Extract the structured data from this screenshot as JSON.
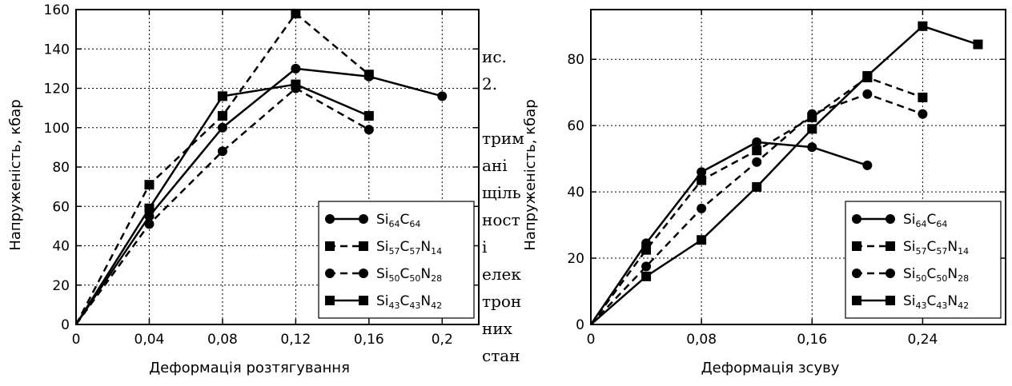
{
  "side_text": [
    "ис.",
    "2.",
    "",
    "трим",
    "ані",
    "щіль",
    "ност",
    "і",
    "елек",
    "трон",
    "них",
    "стан"
  ],
  "series_styles": [
    {
      "key": "si64c64",
      "marker": "circle",
      "dashed": false
    },
    {
      "key": "si57c57n14",
      "marker": "square",
      "dashed": true
    },
    {
      "key": "si50c50n28",
      "marker": "circle",
      "dashed": true
    },
    {
      "key": "si43c43n42",
      "marker": "square",
      "dashed": false
    }
  ],
  "chart_data": [
    {
      "type": "line",
      "xlabel": "Деформація розтягування",
      "ylabel": "Напруженість, кбар",
      "xlim": [
        0,
        0.22
      ],
      "ylim": [
        0,
        160
      ],
      "xticks": [
        0,
        0.04,
        0.08,
        0.12,
        0.16,
        0.2
      ],
      "xtick_labels": [
        "0",
        "0,04",
        "0,08",
        "0,12",
        "0,16",
        "0,2"
      ],
      "yticks": [
        0,
        20,
        40,
        60,
        80,
        100,
        120,
        140,
        160
      ],
      "ytick_labels": [
        "0",
        "20",
        "40",
        "60",
        "80",
        "100",
        "120",
        "140",
        "160"
      ],
      "grid": true,
      "legend_position": "lower-right",
      "series": [
        {
          "name": "Si64C64",
          "name_parts": [
            [
              "Si",
              false
            ],
            [
              "64",
              true
            ],
            [
              "C",
              false
            ],
            [
              "64",
              true
            ]
          ],
          "x": [
            0,
            0.04,
            0.08,
            0.12,
            0.16,
            0.2
          ],
          "y": [
            0,
            55,
            100,
            130,
            126,
            116
          ]
        },
        {
          "name": "Si57C57N14",
          "name_parts": [
            [
              "Si",
              false
            ],
            [
              "57",
              true
            ],
            [
              "C",
              false
            ],
            [
              "57",
              true
            ],
            [
              "N",
              false
            ],
            [
              "14",
              true
            ]
          ],
          "x": [
            0,
            0.04,
            0.08,
            0.12,
            0.16
          ],
          "y": [
            0,
            71,
            106,
            158,
            127
          ]
        },
        {
          "name": "Si50C50N28",
          "name_parts": [
            [
              "Si",
              false
            ],
            [
              "50",
              true
            ],
            [
              "C",
              false
            ],
            [
              "50",
              true
            ],
            [
              "N",
              false
            ],
            [
              "28",
              true
            ]
          ],
          "x": [
            0,
            0.04,
            0.08,
            0.12,
            0.16
          ],
          "y": [
            0,
            51,
            88,
            120,
            99
          ]
        },
        {
          "name": "Si43C43N42",
          "name_parts": [
            [
              "Si",
              false
            ],
            [
              "43",
              true
            ],
            [
              "C",
              false
            ],
            [
              "43",
              true
            ],
            [
              "N",
              false
            ],
            [
              "42",
              true
            ]
          ],
          "x": [
            0,
            0.04,
            0.08,
            0.12,
            0.16
          ],
          "y": [
            0,
            59,
            116,
            122,
            106
          ]
        }
      ]
    },
    {
      "type": "line",
      "xlabel": "Деформація зсуву",
      "ylabel": "Напруженість, кбар",
      "xlim": [
        0,
        0.3
      ],
      "ylim": [
        0,
        95
      ],
      "xticks": [
        0,
        0.08,
        0.16,
        0.24
      ],
      "xtick_labels": [
        "0",
        "0,08",
        "0,16",
        "0,24"
      ],
      "yticks": [
        0,
        20,
        40,
        60,
        80
      ],
      "ytick_labels": [
        "0",
        "20",
        "40",
        "60",
        "80"
      ],
      "grid": true,
      "legend_position": "lower-right",
      "series": [
        {
          "name": "Si64C64",
          "name_parts": [
            [
              "Si",
              false
            ],
            [
              "64",
              true
            ],
            [
              "C",
              false
            ],
            [
              "64",
              true
            ]
          ],
          "x": [
            0,
            0.04,
            0.08,
            0.12,
            0.16,
            0.2
          ],
          "y": [
            0,
            24.5,
            46,
            55,
            53.5,
            48
          ]
        },
        {
          "name": "Si57C57N14",
          "name_parts": [
            [
              "Si",
              false
            ],
            [
              "57",
              true
            ],
            [
              "C",
              false
            ],
            [
              "57",
              true
            ],
            [
              "N",
              false
            ],
            [
              "14",
              true
            ]
          ],
          "x": [
            0,
            0.04,
            0.08,
            0.12,
            0.16,
            0.2,
            0.24
          ],
          "y": [
            0,
            22.5,
            43.5,
            52.5,
            62.5,
            74.5,
            68.5
          ]
        },
        {
          "name": "Si50C50N28",
          "name_parts": [
            [
              "Si",
              false
            ],
            [
              "50",
              true
            ],
            [
              "C",
              false
            ],
            [
              "50",
              true
            ],
            [
              "N",
              false
            ],
            [
              "28",
              true
            ]
          ],
          "x": [
            0,
            0.04,
            0.08,
            0.12,
            0.16,
            0.2,
            0.24
          ],
          "y": [
            0,
            17.5,
            35,
            49,
            63.5,
            69.5,
            63.5
          ]
        },
        {
          "name": "Si43C43N42",
          "name_parts": [
            [
              "Si",
              false
            ],
            [
              "43",
              true
            ],
            [
              "C",
              false
            ],
            [
              "43",
              true
            ],
            [
              "N",
              false
            ],
            [
              "42",
              true
            ]
          ],
          "x": [
            0,
            0.04,
            0.08,
            0.12,
            0.16,
            0.2,
            0.24,
            0.28
          ],
          "y": [
            0,
            14.5,
            25.5,
            41.5,
            59,
            75,
            90,
            84.5
          ]
        }
      ]
    }
  ]
}
